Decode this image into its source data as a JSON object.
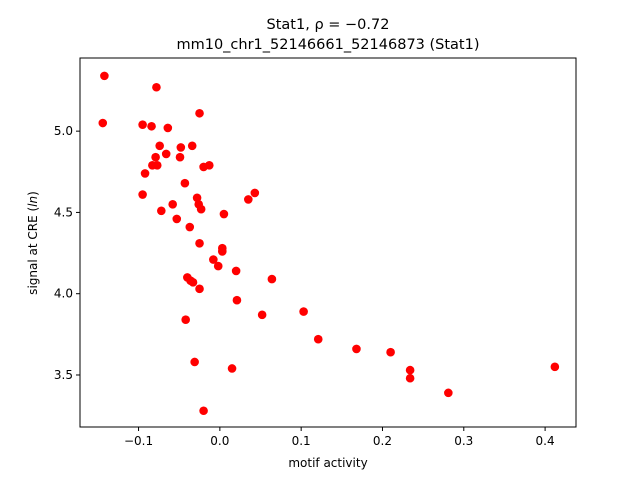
{
  "chart_data": {
    "type": "scatter",
    "title_line1_prefix": "Stat1, ",
    "title_line1_rho": "ρ = −0.72",
    "title_line2": "mm10_chr1_52146661_52146873 (Stat1)",
    "xlabel": "motif activity",
    "ylabel_prefix": "signal at CRE (",
    "ylabel_ln": "ln",
    "ylabel_suffix": ")",
    "xlim": [
      -0.172,
      0.438
    ],
    "ylim": [
      3.18,
      5.45
    ],
    "xticks": [
      {
        "value": -0.1,
        "label": "−0.1"
      },
      {
        "value": 0.0,
        "label": "0.0"
      },
      {
        "value": 0.1,
        "label": "0.1"
      },
      {
        "value": 0.2,
        "label": "0.2"
      },
      {
        "value": 0.3,
        "label": "0.3"
      },
      {
        "value": 0.4,
        "label": "0.4"
      }
    ],
    "yticks": [
      {
        "value": 3.5,
        "label": "3.5"
      },
      {
        "value": 4.0,
        "label": "4.0"
      },
      {
        "value": 4.5,
        "label": "4.5"
      },
      {
        "value": 5.0,
        "label": "5.0"
      }
    ],
    "grid": false,
    "marker_color": "#ff0000",
    "points": [
      {
        "x": -0.142,
        "y": 5.34
      },
      {
        "x": -0.144,
        "y": 5.05
      },
      {
        "x": -0.078,
        "y": 5.27
      },
      {
        "x": -0.095,
        "y": 5.04
      },
      {
        "x": -0.084,
        "y": 5.03
      },
      {
        "x": -0.064,
        "y": 5.02
      },
      {
        "x": -0.025,
        "y": 5.11
      },
      {
        "x": -0.074,
        "y": 4.91
      },
      {
        "x": -0.048,
        "y": 4.9
      },
      {
        "x": -0.034,
        "y": 4.91
      },
      {
        "x": -0.066,
        "y": 4.86
      },
      {
        "x": -0.079,
        "y": 4.84
      },
      {
        "x": -0.049,
        "y": 4.84
      },
      {
        "x": -0.083,
        "y": 4.79
      },
      {
        "x": -0.077,
        "y": 4.79
      },
      {
        "x": -0.013,
        "y": 4.79
      },
      {
        "x": -0.02,
        "y": 4.78
      },
      {
        "x": -0.092,
        "y": 4.74
      },
      {
        "x": -0.043,
        "y": 4.68
      },
      {
        "x": 0.043,
        "y": 4.62
      },
      {
        "x": -0.095,
        "y": 4.61
      },
      {
        "x": -0.028,
        "y": 4.59
      },
      {
        "x": 0.035,
        "y": 4.58
      },
      {
        "x": -0.058,
        "y": 4.55
      },
      {
        "x": -0.026,
        "y": 4.55
      },
      {
        "x": -0.023,
        "y": 4.52
      },
      {
        "x": -0.072,
        "y": 4.51
      },
      {
        "x": 0.005,
        "y": 4.49
      },
      {
        "x": -0.053,
        "y": 4.46
      },
      {
        "x": -0.037,
        "y": 4.41
      },
      {
        "x": -0.025,
        "y": 4.31
      },
      {
        "x": 0.003,
        "y": 4.28
      },
      {
        "x": 0.003,
        "y": 4.26
      },
      {
        "x": -0.008,
        "y": 4.21
      },
      {
        "x": -0.002,
        "y": 4.17
      },
      {
        "x": 0.02,
        "y": 4.14
      },
      {
        "x": -0.04,
        "y": 4.1
      },
      {
        "x": 0.064,
        "y": 4.09
      },
      {
        "x": -0.036,
        "y": 4.08
      },
      {
        "x": -0.033,
        "y": 4.07
      },
      {
        "x": -0.025,
        "y": 4.03
      },
      {
        "x": 0.021,
        "y": 3.96
      },
      {
        "x": 0.103,
        "y": 3.89
      },
      {
        "x": 0.052,
        "y": 3.87
      },
      {
        "x": -0.042,
        "y": 3.84
      },
      {
        "x": 0.121,
        "y": 3.72
      },
      {
        "x": 0.168,
        "y": 3.66
      },
      {
        "x": 0.21,
        "y": 3.64
      },
      {
        "x": -0.031,
        "y": 3.58
      },
      {
        "x": 0.412,
        "y": 3.55
      },
      {
        "x": 0.015,
        "y": 3.54
      },
      {
        "x": 0.234,
        "y": 3.53
      },
      {
        "x": 0.234,
        "y": 3.48
      },
      {
        "x": 0.281,
        "y": 3.39
      },
      {
        "x": -0.02,
        "y": 3.28
      }
    ]
  }
}
